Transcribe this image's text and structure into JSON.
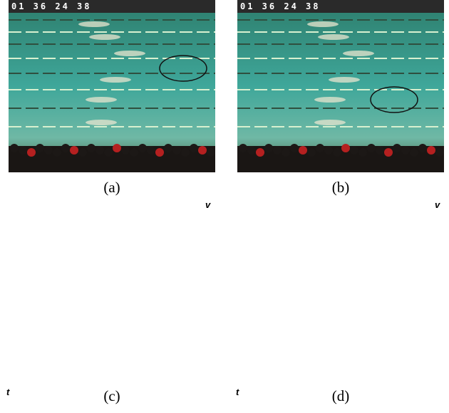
{
  "panels": [
    {
      "caption": "(a)",
      "timestamp": "01 36 24 38"
    },
    {
      "caption": "(b)",
      "timestamp": "01 36 24 38"
    },
    {
      "caption": "(c)",
      "x_axis": "v",
      "y_axis": "t"
    },
    {
      "caption": "(d)",
      "x_axis": "v",
      "y_axis": "t"
    }
  ]
}
